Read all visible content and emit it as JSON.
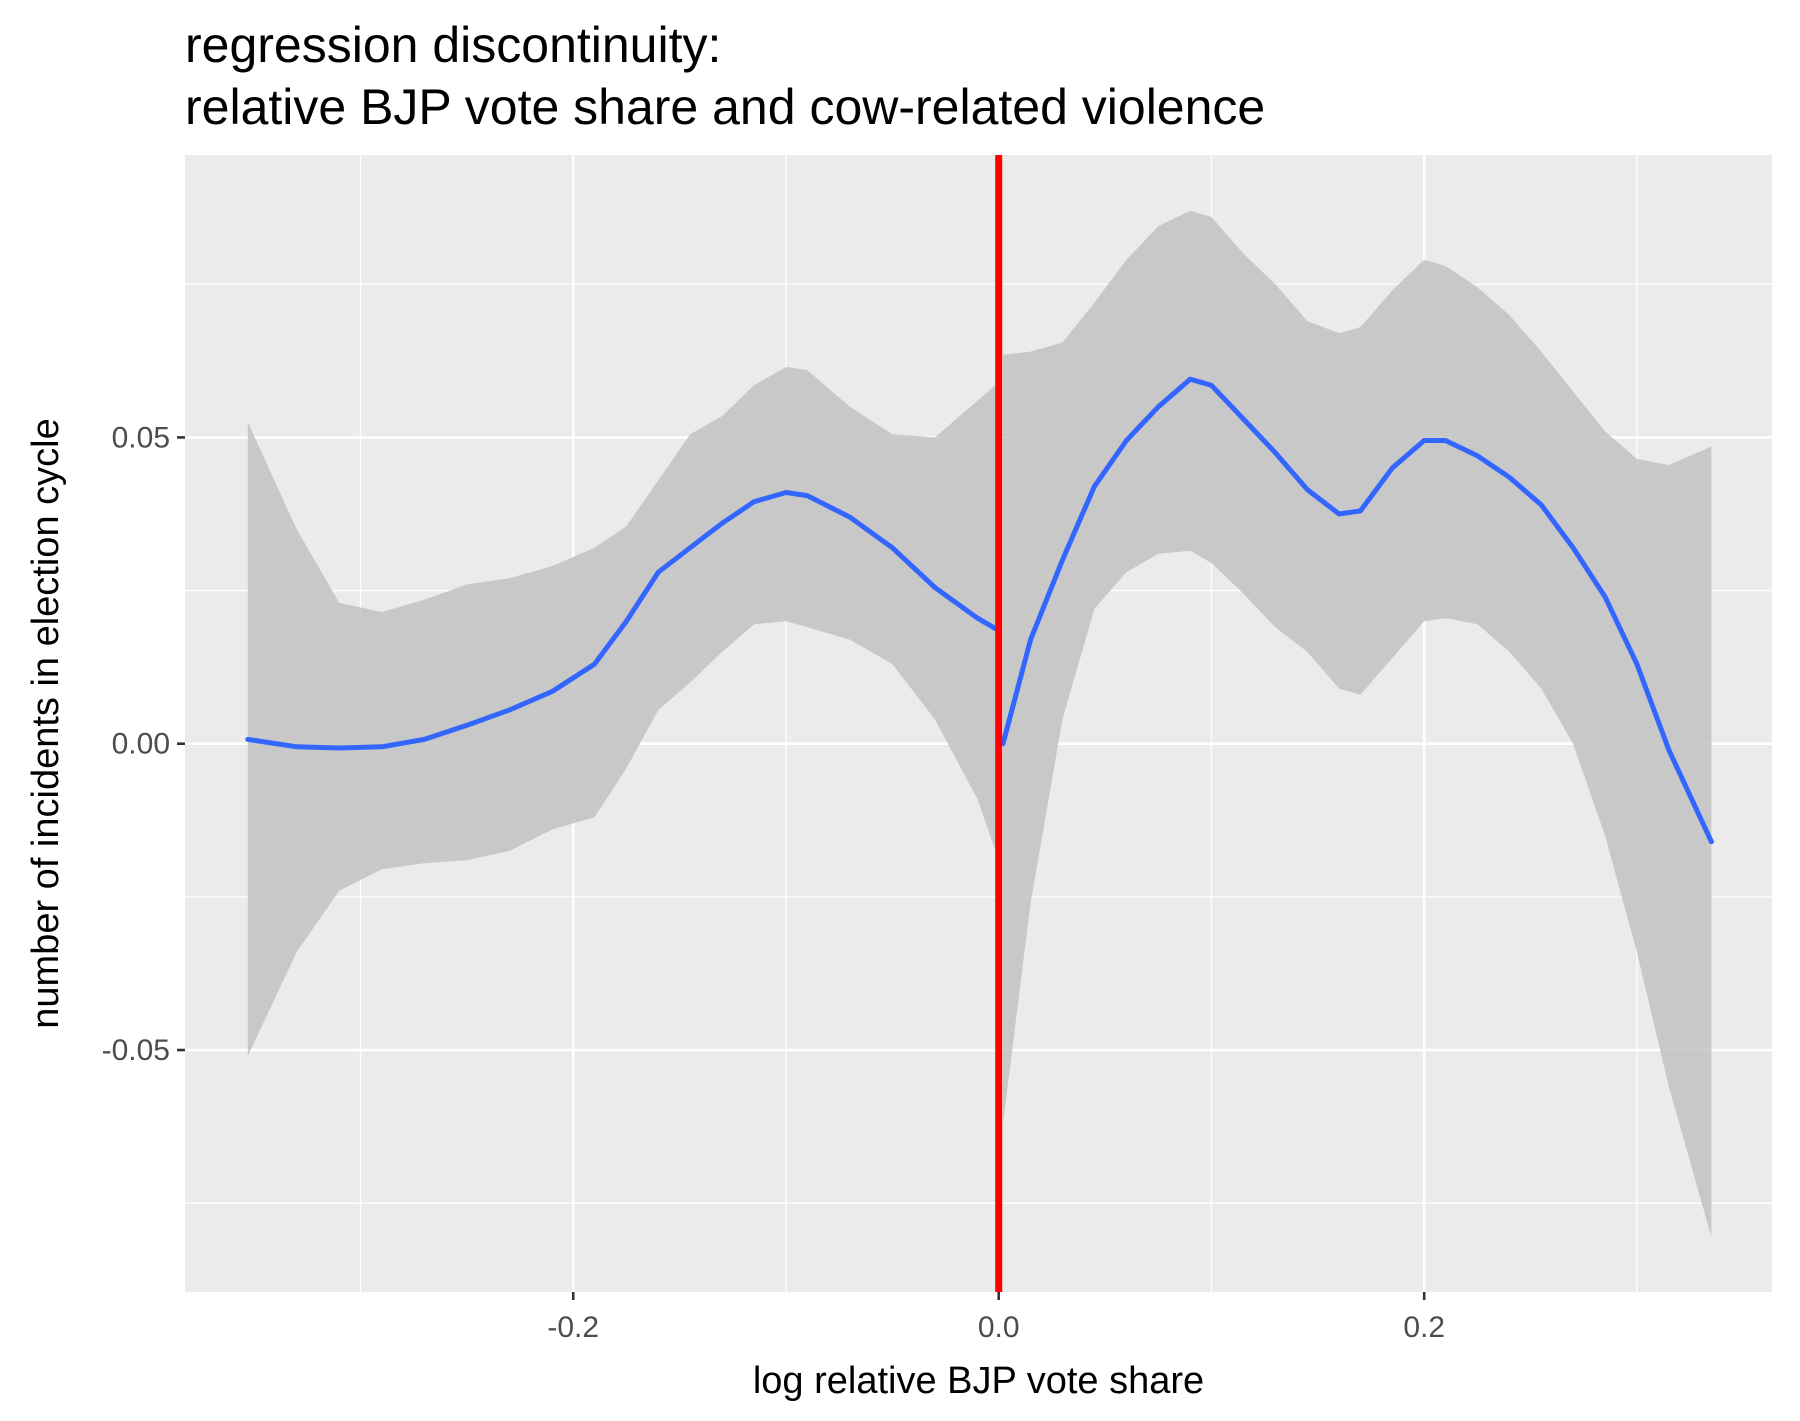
{
  "chart_data": {
    "type": "line",
    "title_lines": [
      "regression discontinuity:",
      "relative BJP vote share and cow-related violence"
    ],
    "xlabel": "log relative BJP vote share",
    "ylabel": "number of incidents in election cycle",
    "xlim": [
      -0.3825,
      0.3635
    ],
    "ylim": [
      -0.0895,
      0.0961
    ],
    "x_ticks": [
      -0.2,
      0.0,
      0.2
    ],
    "x_tick_labels": [
      "-0.2",
      "0.0",
      "0.2"
    ],
    "x_minor": [
      -0.3,
      -0.1,
      0.1,
      0.3
    ],
    "y_ticks": [
      -0.05,
      0.0,
      0.05
    ],
    "y_tick_labels": [
      "-0.05",
      "0.00",
      "0.05"
    ],
    "y_minor": [
      -0.075,
      -0.025,
      0.025,
      0.075
    ],
    "grid": true,
    "cutoff": {
      "x": 0.0,
      "color": "#ff0000"
    },
    "colors": {
      "panel_bg": "#ebebeb",
      "grid": "#ffffff",
      "fit_line": "#3366ff",
      "ribbon": "#c2c2c2"
    },
    "series": [
      {
        "x": [
          -0.353,
          -0.33,
          -0.31,
          -0.29,
          -0.27,
          -0.25,
          -0.23,
          -0.21,
          -0.19,
          -0.175,
          -0.16,
          -0.145,
          -0.13,
          -0.115,
          -0.1,
          -0.09,
          -0.07,
          -0.05,
          -0.03,
          -0.01,
          0.0
        ],
        "fit": [
          0.0007,
          -0.0005,
          -0.0007,
          -0.0005,
          0.0007,
          0.003,
          0.0055,
          0.0085,
          0.013,
          0.02,
          0.028,
          0.032,
          0.036,
          0.0395,
          0.041,
          0.0405,
          0.037,
          0.032,
          0.0255,
          0.0205,
          0.0185
        ],
        "upper": [
          0.0525,
          0.035,
          0.023,
          0.0215,
          0.0235,
          0.026,
          0.027,
          0.029,
          0.032,
          0.0355,
          0.043,
          0.0505,
          0.0535,
          0.0585,
          0.0615,
          0.061,
          0.055,
          0.0505,
          0.05,
          0.056,
          0.059
        ],
        "lower": [
          -0.051,
          -0.034,
          -0.024,
          -0.0205,
          -0.0195,
          -0.019,
          -0.0175,
          -0.014,
          -0.012,
          -0.004,
          0.0055,
          0.01,
          0.015,
          0.0195,
          0.02,
          0.019,
          0.017,
          0.013,
          0.004,
          -0.009,
          -0.019
        ]
      },
      {
        "x": [
          0.002,
          0.015,
          0.03,
          0.045,
          0.06,
          0.075,
          0.09,
          0.1,
          0.115,
          0.13,
          0.145,
          0.16,
          0.17,
          0.185,
          0.2,
          0.21,
          0.225,
          0.24,
          0.255,
          0.27,
          0.285,
          0.3,
          0.315,
          0.335
        ],
        "fit": [
          0.0,
          0.017,
          0.03,
          0.042,
          0.0495,
          0.055,
          0.0595,
          0.0585,
          0.053,
          0.0475,
          0.0415,
          0.0375,
          0.038,
          0.045,
          0.0495,
          0.0495,
          0.047,
          0.0435,
          0.039,
          0.032,
          0.024,
          0.013,
          -0.001,
          -0.016
        ],
        "upper": [
          0.0635,
          0.064,
          0.0655,
          0.072,
          0.079,
          0.0845,
          0.087,
          0.086,
          0.08,
          0.075,
          0.069,
          0.067,
          0.068,
          0.074,
          0.079,
          0.078,
          0.0745,
          0.07,
          0.064,
          0.0575,
          0.051,
          0.0465,
          0.0455,
          0.0485
        ],
        "lower": [
          -0.062,
          -0.026,
          0.004,
          0.022,
          0.028,
          0.031,
          0.0315,
          0.0295,
          0.0245,
          0.019,
          0.015,
          0.009,
          0.008,
          0.014,
          0.02,
          0.0205,
          0.0195,
          0.015,
          0.009,
          0.0,
          -0.015,
          -0.034,
          -0.056,
          -0.0805
        ]
      }
    ]
  }
}
